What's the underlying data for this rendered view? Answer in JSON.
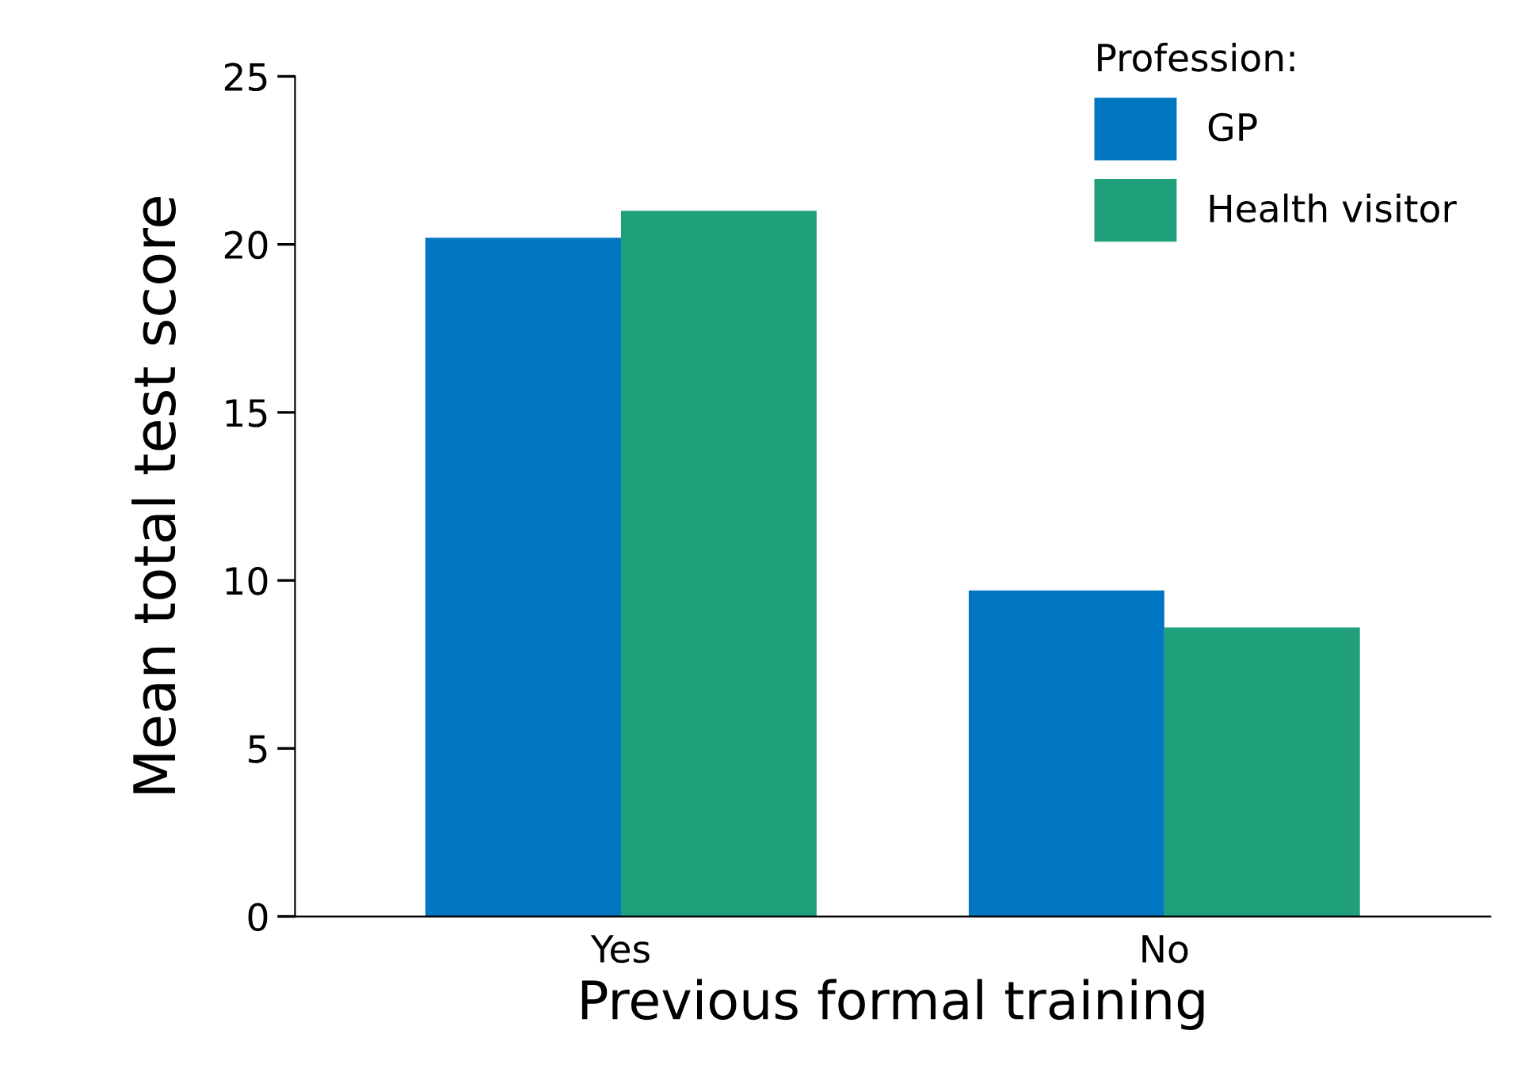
{
  "chart_data": {
    "type": "bar",
    "xlabel": "Previous formal training",
    "ylabel": "Mean total test score",
    "legend_title": "Profession:",
    "categories": [
      "Yes",
      "No"
    ],
    "series": [
      {
        "name": "GP",
        "color": "#0077c0",
        "values": [
          20.2,
          9.7
        ]
      },
      {
        "name": "Health visitor",
        "color": "#1fa07b",
        "values": [
          21.0,
          8.6
        ]
      }
    ],
    "ylim": [
      0,
      25
    ],
    "yticks": [
      0,
      5,
      10,
      15,
      20,
      25
    ],
    "grid": false,
    "legend": "top right"
  }
}
